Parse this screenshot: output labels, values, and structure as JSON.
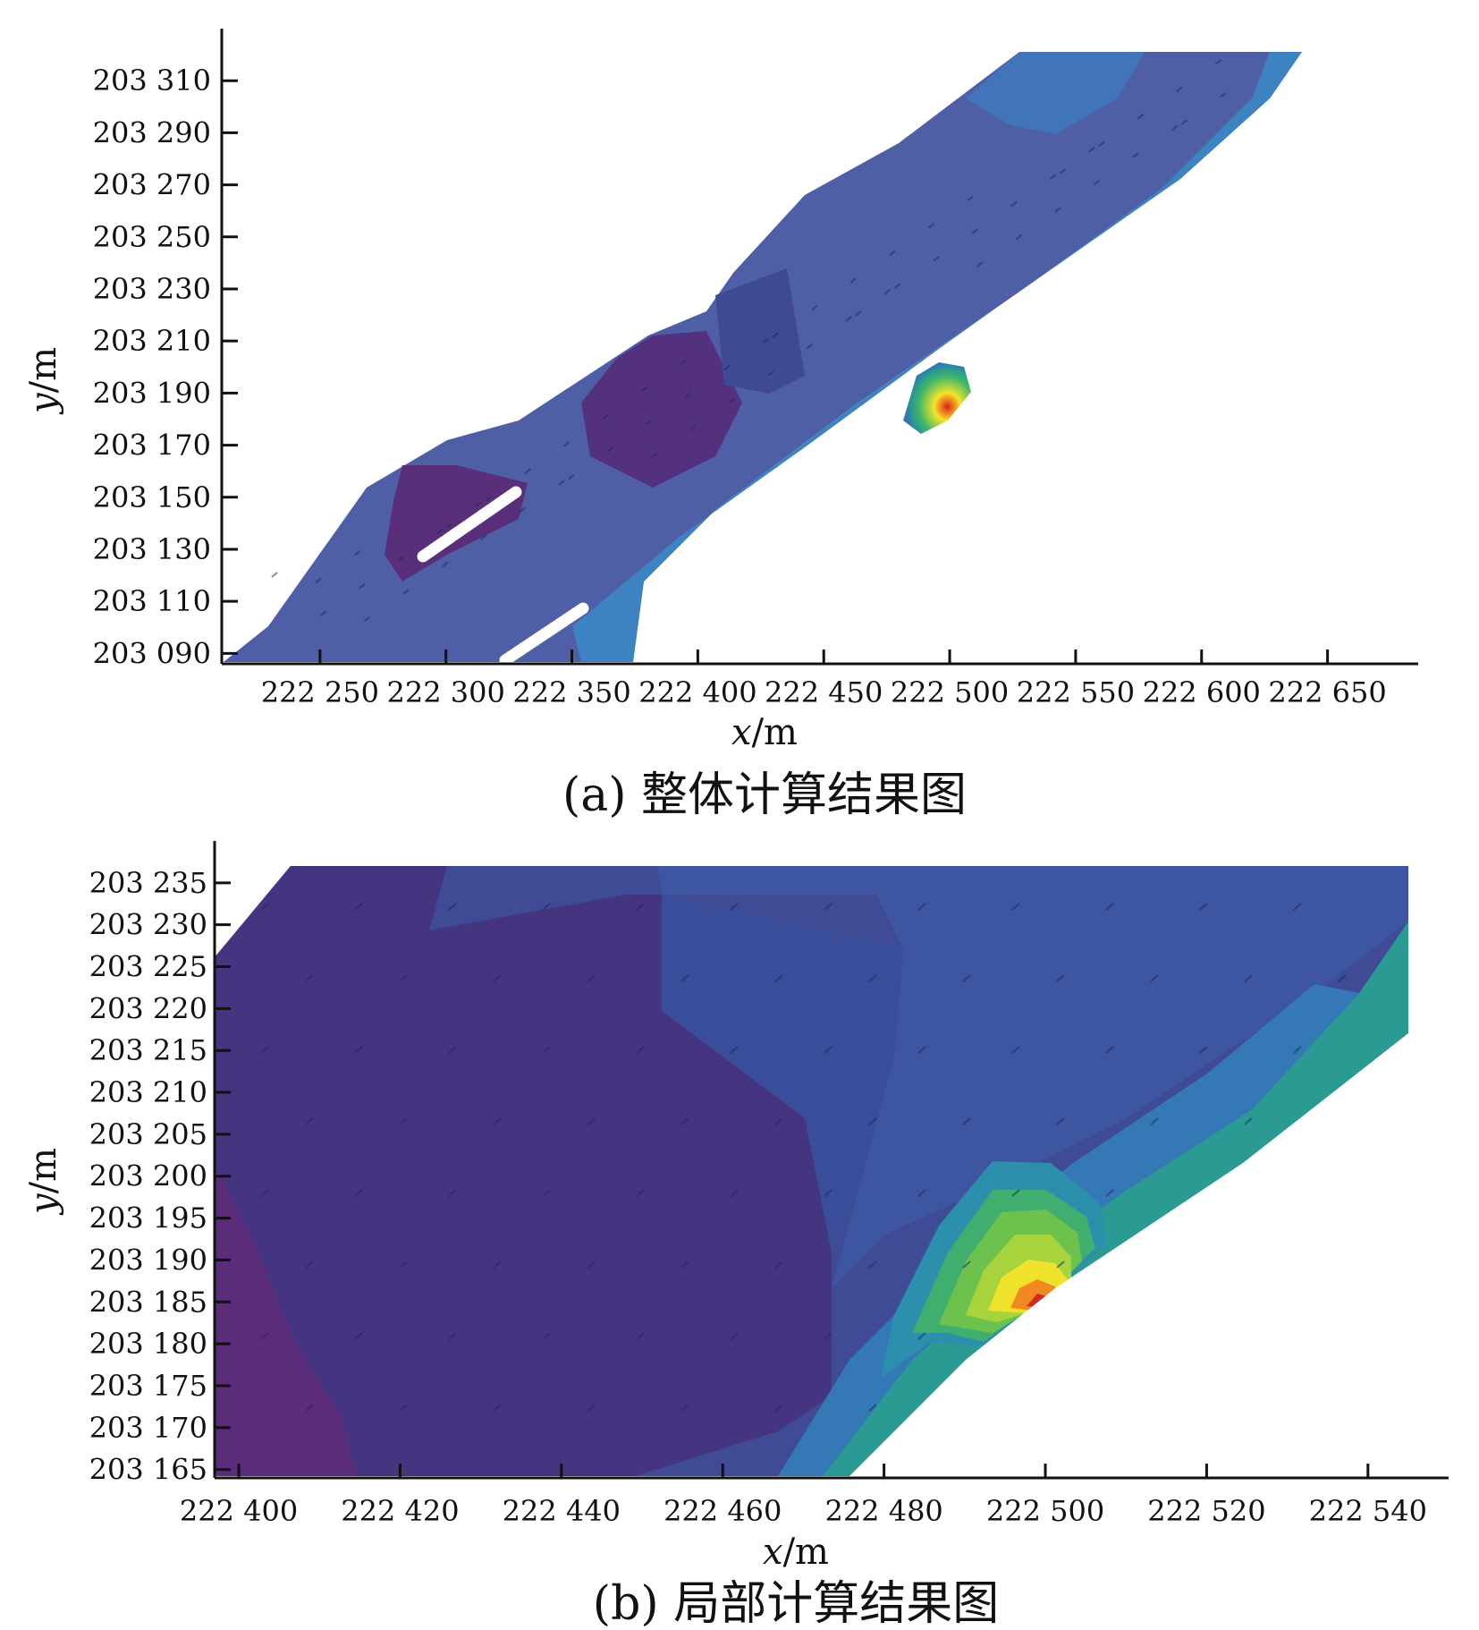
{
  "chart_data": [
    {
      "id": "a",
      "type": "heatmap",
      "caption": "(a) 整体计算结果图",
      "xlabel_var": "x",
      "xlabel_unit": "/m",
      "ylabel_var": "y",
      "ylabel_unit": "/m",
      "x_ticks": [
        "222 250",
        "222 300",
        "222 350",
        "222 400",
        "222 450",
        "222 500",
        "222 550",
        "222 600",
        "222 650"
      ],
      "y_ticks": [
        "203 310",
        "203 290",
        "203 270",
        "203 250",
        "203 230",
        "203 210",
        "203 190",
        "203 170",
        "203 150",
        "203 130",
        "203 110",
        "203 090"
      ],
      "x_tick_values": [
        222250,
        222300,
        222350,
        222400,
        222450,
        222500,
        222550,
        222600,
        222650
      ],
      "y_tick_values": [
        203310,
        203290,
        203270,
        203250,
        203230,
        203210,
        203190,
        203170,
        203150,
        203130,
        203110,
        203090
      ],
      "xlim": [
        222211,
        222686
      ],
      "ylim": [
        203086,
        203330
      ],
      "colorscale": "parula",
      "hotspot": {
        "x": 222498,
        "y": 203185
      }
    },
    {
      "id": "b",
      "type": "heatmap",
      "caption": "(b) 局部计算结果图",
      "xlabel_var": "x",
      "xlabel_unit": "/m",
      "ylabel_var": "y",
      "ylabel_unit": "/m",
      "x_ticks": [
        "222 400",
        "222 420",
        "222 440",
        "222 460",
        "222 480",
        "222 500",
        "222 520",
        "222 540"
      ],
      "y_ticks": [
        "203 235",
        "203 230",
        "203 225",
        "203 220",
        "203 215",
        "203 210",
        "203 205",
        "203 200",
        "203 195",
        "203 190",
        "203 185",
        "203 180",
        "203 175",
        "203 170",
        "203 165"
      ],
      "x_tick_values": [
        222400,
        222420,
        222440,
        222460,
        222480,
        222500,
        222520,
        222540
      ],
      "y_tick_values": [
        203235,
        203230,
        203225,
        203220,
        203215,
        203210,
        203205,
        203200,
        203195,
        203190,
        203185,
        203180,
        203175,
        203170,
        203165
      ],
      "xlim": [
        222397,
        222550
      ],
      "ylim": [
        203164,
        203240
      ],
      "colorscale": "parula",
      "hotspot": {
        "x": 222499,
        "y": 203184
      }
    }
  ]
}
